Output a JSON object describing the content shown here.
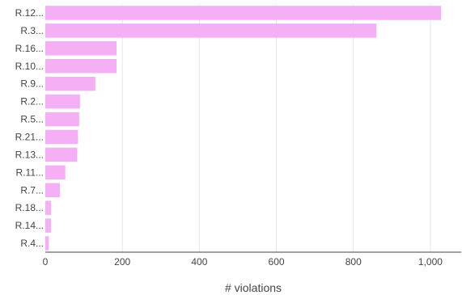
{
  "chart_data": {
    "type": "bar",
    "orientation": "horizontal",
    "categories": [
      "R.12...",
      "R.3...",
      "R.16...",
      "R.10...",
      "R.9...",
      "R.2...",
      "R.5...",
      "R.21...",
      "R.13...",
      "R.11...",
      "R.7...",
      "R.18...",
      "R.14...",
      "R.4..."
    ],
    "values": [
      1028,
      860,
      185,
      185,
      130,
      90,
      88,
      85,
      83,
      52,
      38,
      15,
      15,
      9
    ],
    "xlabel": "# violations",
    "ylabel": "",
    "xlim": [
      0,
      1080
    ],
    "x_ticks": [
      0,
      200,
      400,
      600,
      800,
      1000
    ],
    "x_tick_labels": [
      "0",
      "200",
      "400",
      "600",
      "800",
      "1,000"
    ],
    "grid": "vertical",
    "bar_color": "#f5b0f5"
  }
}
